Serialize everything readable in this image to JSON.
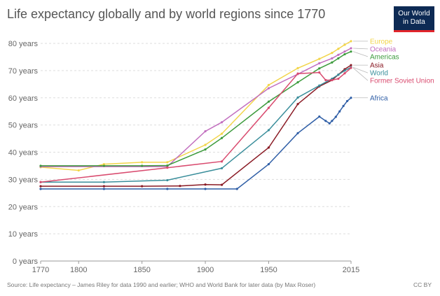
{
  "header": {
    "title": "Life expectancy globally and by world regions since 1770",
    "logo_line1": "Our World",
    "logo_line2": "in Data"
  },
  "footer": {
    "source": "Source: Life expectancy – James Riley for data 1990 and earlier; WHO and World Bank for later data (by Max Roser)",
    "license": "CC BY"
  },
  "chart_data": {
    "type": "line",
    "title": "Life expectancy globally and by world regions since 1770",
    "xlabel": "",
    "ylabel": "",
    "xlim": [
      1770,
      2015
    ],
    "ylim": [
      0,
      80
    ],
    "x_ticks": [
      1770,
      1800,
      1850,
      1900,
      1950,
      2015
    ],
    "y_ticks": [
      0,
      10,
      20,
      30,
      40,
      50,
      60,
      70,
      80
    ],
    "y_tick_labels": [
      "0 years",
      "10 years",
      "20 years",
      "30 years",
      "40 years",
      "50 years",
      "60 years",
      "70 years",
      "80 years"
    ],
    "grid": "horizontal dashed",
    "legend": "right, labels at line ends",
    "series": [
      {
        "name": "Europe",
        "color": "#f2d54a",
        "points": [
          [
            1770,
            34.5
          ],
          [
            1800,
            33.3
          ],
          [
            1820,
            35.6
          ],
          [
            1850,
            36.3
          ],
          [
            1870,
            36.3
          ],
          [
            1900,
            42.7
          ],
          [
            1913,
            46.8
          ],
          [
            1950,
            64.7
          ],
          [
            1973,
            70.9
          ],
          [
            1990,
            74.3
          ],
          [
            2000,
            76.5
          ],
          [
            2005,
            78
          ],
          [
            2010,
            79.5
          ],
          [
            2015,
            80.8
          ]
        ]
      },
      {
        "name": "Oceania",
        "color": "#c26fbf",
        "points": [
          [
            1770,
            34.7
          ],
          [
            1870,
            34.7
          ],
          [
            1900,
            47.7
          ],
          [
            1913,
            51
          ],
          [
            1950,
            63.5
          ],
          [
            1973,
            68.7
          ],
          [
            1990,
            72.7
          ],
          [
            2000,
            74.5
          ],
          [
            2005,
            75.8
          ],
          [
            2010,
            77
          ],
          [
            2015,
            78.2
          ]
        ]
      },
      {
        "name": "Americas",
        "color": "#3d9b3d",
        "points": [
          [
            1770,
            35
          ],
          [
            1820,
            35
          ],
          [
            1850,
            35
          ],
          [
            1870,
            35.1
          ],
          [
            1900,
            41
          ],
          [
            1913,
            45.2
          ],
          [
            1950,
            58.6
          ],
          [
            1973,
            65.7
          ],
          [
            1990,
            70.8
          ],
          [
            2000,
            73
          ],
          [
            2005,
            74.5
          ],
          [
            2010,
            76
          ],
          [
            2015,
            77
          ]
        ]
      },
      {
        "name": "Asia",
        "color": "#8a1a24",
        "points": [
          [
            1770,
            27.5
          ],
          [
            1820,
            27.5
          ],
          [
            1850,
            27.5
          ],
          [
            1880,
            27.6
          ],
          [
            1900,
            28.1
          ],
          [
            1913,
            28
          ],
          [
            1950,
            41.7
          ],
          [
            1973,
            57.7
          ],
          [
            1990,
            64.2
          ],
          [
            2000,
            66.5
          ],
          [
            2005,
            68.5
          ],
          [
            2010,
            70.5
          ],
          [
            2015,
            72
          ]
        ]
      },
      {
        "name": "World",
        "color": "#3a8e9b",
        "points": [
          [
            1770,
            29
          ],
          [
            1820,
            29
          ],
          [
            1870,
            29.7
          ],
          [
            1913,
            34.1
          ],
          [
            1950,
            48.1
          ],
          [
            1973,
            60.1
          ],
          [
            1990,
            64.5
          ],
          [
            2000,
            67
          ],
          [
            2005,
            68.5
          ],
          [
            2010,
            70
          ],
          [
            2015,
            71.2
          ]
        ]
      },
      {
        "name": "Former Soviet Union",
        "color": "#d94b6f",
        "points": [
          [
            1770,
            29
          ],
          [
            1870,
            34.3
          ],
          [
            1913,
            36.6
          ],
          [
            1950,
            56.3
          ],
          [
            1973,
            68.9
          ],
          [
            1990,
            69.3
          ],
          [
            1995,
            66.5
          ],
          [
            2000,
            66.5
          ],
          [
            2005,
            67
          ],
          [
            2010,
            69
          ],
          [
            2015,
            71
          ]
        ]
      },
      {
        "name": "Africa",
        "color": "#2f5ea6",
        "points": [
          [
            1770,
            26.5
          ],
          [
            1820,
            26.5
          ],
          [
            1870,
            26.5
          ],
          [
            1900,
            26.5
          ],
          [
            1925,
            26.5
          ],
          [
            1950,
            35.6
          ],
          [
            1973,
            47
          ],
          [
            1990,
            53.1
          ],
          [
            1995,
            51.5
          ],
          [
            1998,
            50.6
          ],
          [
            2000,
            51.5
          ],
          [
            2003,
            53
          ],
          [
            2006,
            55
          ],
          [
            2009,
            57
          ],
          [
            2012,
            58.8
          ],
          [
            2015,
            60
          ]
        ]
      }
    ]
  }
}
